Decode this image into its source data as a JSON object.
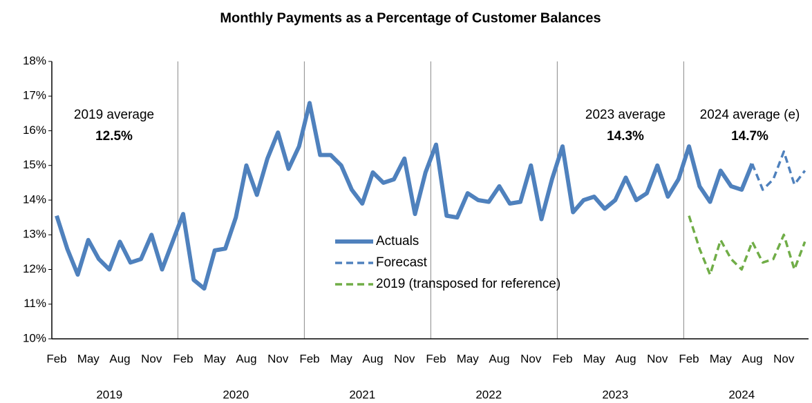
{
  "chart_data": {
    "type": "line",
    "title": "Monthly Payments as a Percentage of Customer Balances",
    "categories": [
      "Feb",
      null,
      null,
      "May",
      null,
      null,
      "Aug",
      null,
      null,
      "Nov",
      null,
      null,
      "Feb",
      null,
      null,
      "May",
      null,
      null,
      "Aug",
      null,
      null,
      "Nov",
      null,
      null,
      "Feb",
      null,
      null,
      "May",
      null,
      null,
      "Aug",
      null,
      null,
      "Nov",
      null,
      null,
      "Feb",
      null,
      null,
      "May",
      null,
      null,
      "Aug",
      null,
      null,
      "Nov",
      null,
      null,
      "Feb",
      null,
      null,
      "May",
      null,
      null,
      "Aug",
      null,
      null,
      "Nov",
      null,
      null,
      "Feb",
      null,
      null,
      "May",
      null,
      null,
      "Aug",
      null,
      null,
      "Nov",
      null,
      null
    ],
    "years": [
      "2019",
      "2020",
      "2021",
      "2022",
      "2023",
      "2024"
    ],
    "series": [
      {
        "name": "Actuals",
        "color": "#4f81bd",
        "style": "solid",
        "values": [
          13.55,
          12.6,
          11.85,
          12.85,
          12.3,
          12.0,
          12.8,
          12.2,
          12.3,
          13.0,
          12.0,
          12.8,
          13.6,
          11.7,
          11.45,
          12.55,
          12.6,
          13.5,
          15.0,
          14.15,
          15.2,
          15.95,
          14.9,
          15.55,
          16.8,
          15.3,
          15.3,
          15.0,
          14.3,
          13.9,
          14.8,
          14.5,
          14.6,
          15.2,
          13.6,
          14.8,
          15.6,
          13.55,
          13.5,
          14.2,
          14.0,
          13.95,
          14.4,
          13.9,
          13.95,
          15.0,
          13.45,
          14.6,
          15.55,
          13.65,
          14.0,
          14.1,
          13.75,
          14.0,
          14.65,
          14.0,
          14.2,
          15.0,
          14.1,
          14.6,
          15.55,
          14.4,
          13.95,
          14.85,
          14.4,
          14.3,
          15.05,
          null,
          null,
          null,
          null,
          null
        ]
      },
      {
        "name": "Forecast",
        "color": "#4f81bd",
        "style": "dashed",
        "values": [
          null,
          null,
          null,
          null,
          null,
          null,
          null,
          null,
          null,
          null,
          null,
          null,
          null,
          null,
          null,
          null,
          null,
          null,
          null,
          null,
          null,
          null,
          null,
          null,
          null,
          null,
          null,
          null,
          null,
          null,
          null,
          null,
          null,
          null,
          null,
          null,
          null,
          null,
          null,
          null,
          null,
          null,
          null,
          null,
          null,
          null,
          null,
          null,
          null,
          null,
          null,
          null,
          null,
          null,
          null,
          null,
          null,
          null,
          null,
          null,
          null,
          null,
          null,
          null,
          null,
          null,
          15.05,
          14.3,
          14.6,
          15.4,
          14.45,
          14.85
        ]
      },
      {
        "name": "2019 (transposed for reference)",
        "color": "#70ad47",
        "style": "dashed",
        "values": [
          null,
          null,
          null,
          null,
          null,
          null,
          null,
          null,
          null,
          null,
          null,
          null,
          null,
          null,
          null,
          null,
          null,
          null,
          null,
          null,
          null,
          null,
          null,
          null,
          null,
          null,
          null,
          null,
          null,
          null,
          null,
          null,
          null,
          null,
          null,
          null,
          null,
          null,
          null,
          null,
          null,
          null,
          null,
          null,
          null,
          null,
          null,
          null,
          null,
          null,
          null,
          null,
          null,
          null,
          null,
          null,
          null,
          null,
          null,
          null,
          13.55,
          12.6,
          11.85,
          12.85,
          12.3,
          12.0,
          12.8,
          12.2,
          12.3,
          13.0,
          12.0,
          12.8
        ]
      }
    ],
    "annotations": [
      {
        "text": "2019 average",
        "value": "12.5%"
      },
      {
        "text": "2023 average",
        "value": "14.3%"
      },
      {
        "text": "2024 average (e)",
        "value": "14.7%"
      }
    ],
    "ylim": [
      10,
      18
    ],
    "yticks": [
      {
        "value": 10,
        "label": "10%"
      },
      {
        "value": 11,
        "label": "11%"
      },
      {
        "value": 12,
        "label": "12%"
      },
      {
        "value": 13,
        "label": "13%"
      },
      {
        "value": 14,
        "label": "14%"
      },
      {
        "value": 15,
        "label": "15%"
      },
      {
        "value": 16,
        "label": "16%"
      },
      {
        "value": 17,
        "label": "17%"
      },
      {
        "value": 18,
        "label": "18%"
      }
    ],
    "grid": false,
    "legend": "center"
  }
}
